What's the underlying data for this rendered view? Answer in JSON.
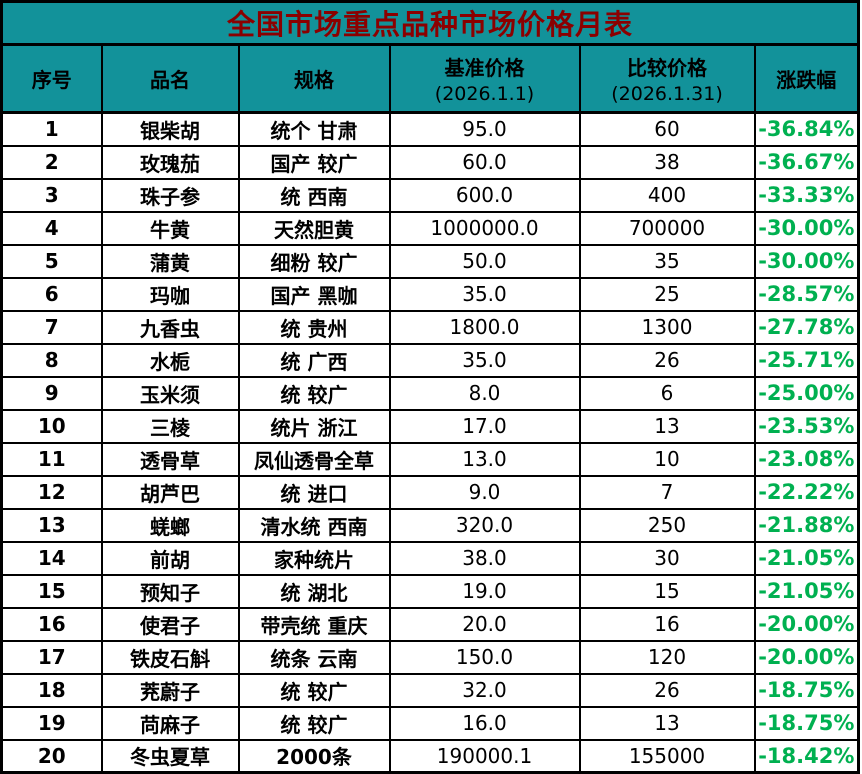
{
  "table": {
    "title": "全国市场重点品种市场价格月表",
    "headers": {
      "no": "序号",
      "name": "品名",
      "spec": "规格",
      "base_line1": "基准价格",
      "base_line2": "(2026.1.1)",
      "compare_line1": "比较价格",
      "compare_line2": "(2026.1.31)",
      "change": "涨跌幅"
    },
    "rows": [
      {
        "no": "1",
        "name": "银柴胡",
        "spec": "统个 甘肃",
        "base": "95.0",
        "compare": "60",
        "change": "-36.84%"
      },
      {
        "no": "2",
        "name": "玫瑰茄",
        "spec": "国产 较广",
        "base": "60.0",
        "compare": "38",
        "change": "-36.67%"
      },
      {
        "no": "3",
        "name": "珠子参",
        "spec": "统 西南",
        "base": "600.0",
        "compare": "400",
        "change": "-33.33%"
      },
      {
        "no": "4",
        "name": "牛黄",
        "spec": "天然胆黄",
        "base": "1000000.0",
        "compare": "700000",
        "change": "-30.00%"
      },
      {
        "no": "5",
        "name": "蒲黄",
        "spec": "细粉 较广",
        "base": "50.0",
        "compare": "35",
        "change": "-30.00%"
      },
      {
        "no": "6",
        "name": "玛咖",
        "spec": "国产 黑咖",
        "base": "35.0",
        "compare": "25",
        "change": "-28.57%"
      },
      {
        "no": "7",
        "name": "九香虫",
        "spec": "统 贵州",
        "base": "1800.0",
        "compare": "1300",
        "change": "-27.78%"
      },
      {
        "no": "8",
        "name": "水栀",
        "spec": "统 广西",
        "base": "35.0",
        "compare": "26",
        "change": "-25.71%"
      },
      {
        "no": "9",
        "name": "玉米须",
        "spec": "统 较广",
        "base": "8.0",
        "compare": "6",
        "change": "-25.00%"
      },
      {
        "no": "10",
        "name": "三棱",
        "spec": "统片 浙江",
        "base": "17.0",
        "compare": "13",
        "change": "-23.53%"
      },
      {
        "no": "11",
        "name": "透骨草",
        "spec": "凤仙透骨全草",
        "base": "13.0",
        "compare": "10",
        "change": "-23.08%"
      },
      {
        "no": "12",
        "name": "胡芦巴",
        "spec": "统 进口",
        "base": "9.0",
        "compare": "7",
        "change": "-22.22%"
      },
      {
        "no": "13",
        "name": "蜣螂",
        "spec": "清水统 西南",
        "base": "320.0",
        "compare": "250",
        "change": "-21.88%"
      },
      {
        "no": "14",
        "name": "前胡",
        "spec": "家种统片",
        "base": "38.0",
        "compare": "30",
        "change": "-21.05%"
      },
      {
        "no": "15",
        "name": "预知子",
        "spec": "统 湖北",
        "base": "19.0",
        "compare": "15",
        "change": "-21.05%"
      },
      {
        "no": "16",
        "name": "使君子",
        "spec": "带壳统 重庆",
        "base": "20.0",
        "compare": "16",
        "change": "-20.00%"
      },
      {
        "no": "17",
        "name": "铁皮石斛",
        "spec": "统条 云南",
        "base": "150.0",
        "compare": "120",
        "change": "-20.00%"
      },
      {
        "no": "18",
        "name": "茺蔚子",
        "spec": "统 较广",
        "base": "32.0",
        "compare": "26",
        "change": "-18.75%"
      },
      {
        "no": "19",
        "name": "苘麻子",
        "spec": "统 较广",
        "base": "16.0",
        "compare": "13",
        "change": "-18.75%"
      },
      {
        "no": "20",
        "name": "冬虫夏草",
        "spec": "2000条",
        "base": "190000.1",
        "compare": "155000",
        "change": "-18.42%"
      }
    ]
  },
  "colors": {
    "header_bg": "#12929A",
    "title_text": "#8B0000",
    "change_text": "#00B050",
    "border": "#000000",
    "row_bg": "#FFFFFF"
  },
  "chart_data": {
    "type": "table",
    "title": "全国市场重点品种市场价格月表",
    "columns": [
      "序号",
      "品名",
      "规格",
      "基准价格 (2026.1.1)",
      "比较价格 (2026.1.31)",
      "涨跌幅"
    ],
    "rows": [
      [
        1,
        "银柴胡",
        "统个 甘肃",
        95.0,
        60,
        "-36.84%"
      ],
      [
        2,
        "玫瑰茄",
        "国产 较广",
        60.0,
        38,
        "-36.67%"
      ],
      [
        3,
        "珠子参",
        "统 西南",
        600.0,
        400,
        "-33.33%"
      ],
      [
        4,
        "牛黄",
        "天然胆黄",
        1000000.0,
        700000,
        "-30.00%"
      ],
      [
        5,
        "蒲黄",
        "细粉 较广",
        50.0,
        35,
        "-30.00%"
      ],
      [
        6,
        "玛咖",
        "国产 黑咖",
        35.0,
        25,
        "-28.57%"
      ],
      [
        7,
        "九香虫",
        "统 贵州",
        1800.0,
        1300,
        "-27.78%"
      ],
      [
        8,
        "水栀",
        "统 广西",
        35.0,
        26,
        "-25.71%"
      ],
      [
        9,
        "玉米须",
        "统 较广",
        8.0,
        6,
        "-25.00%"
      ],
      [
        10,
        "三棱",
        "统片 浙江",
        17.0,
        13,
        "-23.53%"
      ],
      [
        11,
        "透骨草",
        "凤仙透骨全草",
        13.0,
        10,
        "-23.08%"
      ],
      [
        12,
        "胡芦巴",
        "统 进口",
        9.0,
        7,
        "-22.22%"
      ],
      [
        13,
        "蜣螂",
        "清水统 西南",
        320.0,
        250,
        "-21.88%"
      ],
      [
        14,
        "前胡",
        "家种统片",
        38.0,
        30,
        "-21.05%"
      ],
      [
        15,
        "预知子",
        "统 湖北",
        19.0,
        15,
        "-21.05%"
      ],
      [
        16,
        "使君子",
        "带壳统 重庆",
        20.0,
        16,
        "-20.00%"
      ],
      [
        17,
        "铁皮石斛",
        "统条 云南",
        150.0,
        120,
        "-20.00%"
      ],
      [
        18,
        "茺蔚子",
        "统 较广",
        32.0,
        26,
        "-18.75%"
      ],
      [
        19,
        "苘麻子",
        "统 较广",
        16.0,
        13,
        "-18.75%"
      ],
      [
        20,
        "冬虫夏草",
        "2000条",
        190000.1,
        155000,
        "-18.42%"
      ]
    ]
  }
}
